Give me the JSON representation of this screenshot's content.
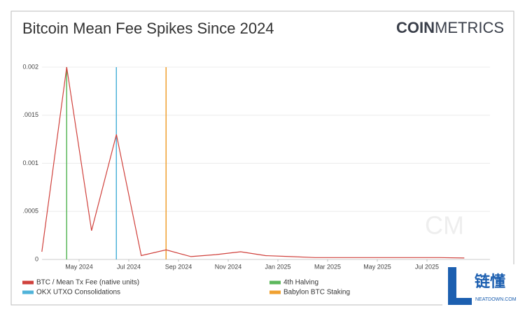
{
  "chart_data": {
    "type": "line",
    "title": "Bitcoin Mean Fee Spikes Since 2024",
    "brand": {
      "bold": "COIN",
      "light": "METRICS"
    },
    "watermark": {
      "mark": "CM",
      "text": "链懂",
      "site": "NEATDOWN.COM"
    },
    "x": [
      "2024-03",
      "2024-04",
      "2024-05",
      "2024-06",
      "2024-07",
      "2024-08",
      "2024-09",
      "2024-10",
      "2024-11",
      "2024-12",
      "2025-01",
      "2025-02",
      "2025-03",
      "2025-04",
      "2025-05",
      "2025-06",
      "2025-07",
      "2025-08"
    ],
    "series": [
      {
        "name": "BTC / Mean Tx Fee (native units)",
        "color": "#d0413c",
        "values": [
          8e-05,
          0.002,
          0.0003,
          0.0013,
          4e-05,
          0.0001,
          3e-05,
          5e-05,
          8e-05,
          4e-05,
          3e-05,
          2e-05,
          2e-05,
          2e-05,
          2e-05,
          2e-05,
          2e-05,
          1.5e-05
        ]
      }
    ],
    "events": [
      {
        "name": "4th Halving",
        "color": "#5cb85c",
        "x": "2024-04"
      },
      {
        "name": "OKX UTXO Consolidations",
        "color": "#4fb3d9",
        "x": "2024-06"
      },
      {
        "name": "Babylon BTC Staking",
        "color": "#f0a030",
        "x": "2024-08"
      }
    ],
    "xlim": [
      "2024-03",
      "2025-09"
    ],
    "xticks": [
      {
        "value": "2024-05",
        "label": "May 2024"
      },
      {
        "value": "2024-07",
        "label": "Jul 2024"
      },
      {
        "value": "2024-09",
        "label": "Sep 2024"
      },
      {
        "value": "2024-11",
        "label": "Nov 2024"
      },
      {
        "value": "2025-01",
        "label": "Jan 2025"
      },
      {
        "value": "2025-03",
        "label": "Mar 2025"
      },
      {
        "value": "2025-05",
        "label": "May 2025"
      },
      {
        "value": "2025-07",
        "label": "Jul 2025"
      }
    ],
    "ylim": [
      0,
      0.002
    ],
    "yticks": [
      0,
      {
        "value": 0.0005,
        "label": ".0005"
      },
      0.001,
      {
        "value": 0.0015,
        "label": ".0015"
      },
      0.002
    ],
    "grid": true
  }
}
